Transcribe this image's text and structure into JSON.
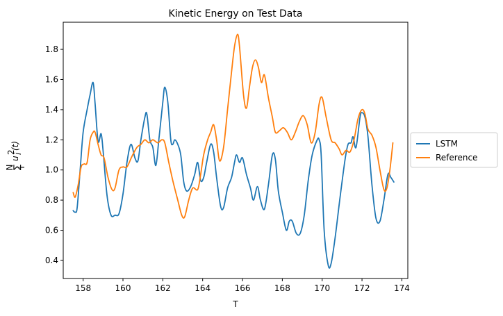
{
  "chart_data": {
    "type": "line",
    "title": "Kinetic Energy on Test Data",
    "xlabel": "T",
    "ylabel": "∑_i^N u_i^2(t)",
    "ylabel_parts": {
      "sigma": "∑",
      "top": "N",
      "bottom": "i",
      "body": "u",
      "sup": "2",
      "sub": "i",
      "arg": "(t)"
    },
    "xlim": [
      157.0,
      174.3
    ],
    "ylim": [
      0.28,
      1.98
    ],
    "xticks": [
      158,
      160,
      162,
      164,
      166,
      168,
      170,
      172,
      174
    ],
    "yticks": [
      0.4,
      0.6,
      0.8,
      1.0,
      1.2,
      1.4,
      1.6,
      1.8
    ],
    "legend_position": "right",
    "grid": false,
    "series": [
      {
        "name": "LSTM",
        "color": "#1f77b4",
        "points": [
          [
            157.5,
            0.73
          ],
          [
            157.6,
            0.72
          ],
          [
            157.7,
            0.75
          ],
          [
            157.85,
            1.0
          ],
          [
            158.0,
            1.25
          ],
          [
            158.2,
            1.4
          ],
          [
            158.35,
            1.5
          ],
          [
            158.5,
            1.58
          ],
          [
            158.6,
            1.44
          ],
          [
            158.75,
            1.19
          ],
          [
            158.9,
            1.24
          ],
          [
            159.0,
            1.13
          ],
          [
            159.2,
            0.83
          ],
          [
            159.4,
            0.7
          ],
          [
            159.6,
            0.7
          ],
          [
            159.8,
            0.71
          ],
          [
            160.0,
            0.84
          ],
          [
            160.2,
            1.05
          ],
          [
            160.4,
            1.17
          ],
          [
            160.6,
            1.08
          ],
          [
            160.75,
            1.06
          ],
          [
            160.9,
            1.2
          ],
          [
            161.1,
            1.35
          ],
          [
            161.2,
            1.37
          ],
          [
            161.35,
            1.2
          ],
          [
            161.5,
            1.15
          ],
          [
            161.65,
            1.03
          ],
          [
            161.8,
            1.2
          ],
          [
            162.0,
            1.45
          ],
          [
            162.1,
            1.55
          ],
          [
            162.25,
            1.45
          ],
          [
            162.4,
            1.2
          ],
          [
            162.5,
            1.17
          ],
          [
            162.6,
            1.2
          ],
          [
            162.75,
            1.17
          ],
          [
            162.9,
            1.1
          ],
          [
            163.05,
            0.92
          ],
          [
            163.2,
            0.86
          ],
          [
            163.4,
            0.89
          ],
          [
            163.6,
            0.97
          ],
          [
            163.75,
            1.05
          ],
          [
            163.9,
            0.93
          ],
          [
            164.05,
            0.95
          ],
          [
            164.2,
            1.05
          ],
          [
            164.4,
            1.17
          ],
          [
            164.55,
            1.12
          ],
          [
            164.7,
            0.95
          ],
          [
            164.9,
            0.76
          ],
          [
            165.05,
            0.75
          ],
          [
            165.25,
            0.88
          ],
          [
            165.45,
            0.95
          ],
          [
            165.6,
            1.05
          ],
          [
            165.7,
            1.1
          ],
          [
            165.85,
            1.05
          ],
          [
            166.0,
            1.08
          ],
          [
            166.2,
            0.97
          ],
          [
            166.4,
            0.88
          ],
          [
            166.55,
            0.8
          ],
          [
            166.75,
            0.89
          ],
          [
            166.9,
            0.8
          ],
          [
            167.1,
            0.74
          ],
          [
            167.3,
            0.9
          ],
          [
            167.5,
            1.1
          ],
          [
            167.65,
            1.07
          ],
          [
            167.8,
            0.86
          ],
          [
            168.0,
            0.72
          ],
          [
            168.2,
            0.6
          ],
          [
            168.35,
            0.66
          ],
          [
            168.5,
            0.66
          ],
          [
            168.7,
            0.58
          ],
          [
            168.9,
            0.58
          ],
          [
            169.1,
            0.7
          ],
          [
            169.3,
            0.93
          ],
          [
            169.5,
            1.1
          ],
          [
            169.75,
            1.2
          ],
          [
            169.85,
            1.2
          ],
          [
            169.95,
            1.1
          ],
          [
            170.1,
            0.6
          ],
          [
            170.3,
            0.37
          ],
          [
            170.45,
            0.38
          ],
          [
            170.65,
            0.55
          ],
          [
            170.9,
            0.82
          ],
          [
            171.15,
            1.07
          ],
          [
            171.3,
            1.17
          ],
          [
            171.45,
            1.18
          ],
          [
            171.55,
            1.22
          ],
          [
            171.7,
            1.15
          ],
          [
            171.9,
            1.35
          ],
          [
            172.0,
            1.38
          ],
          [
            172.15,
            1.35
          ],
          [
            172.3,
            1.22
          ],
          [
            172.5,
            0.9
          ],
          [
            172.7,
            0.68
          ],
          [
            172.9,
            0.66
          ],
          [
            173.1,
            0.8
          ],
          [
            173.3,
            0.97
          ],
          [
            173.45,
            0.95
          ],
          [
            173.6,
            0.92
          ]
        ]
      },
      {
        "name": "Reference",
        "color": "#ff7f0e",
        "points": [
          [
            157.5,
            0.85
          ],
          [
            157.6,
            0.82
          ],
          [
            157.75,
            0.9
          ],
          [
            157.9,
            1.02
          ],
          [
            158.05,
            1.04
          ],
          [
            158.2,
            1.05
          ],
          [
            158.35,
            1.2
          ],
          [
            158.5,
            1.25
          ],
          [
            158.6,
            1.25
          ],
          [
            158.75,
            1.17
          ],
          [
            158.9,
            1.1
          ],
          [
            159.05,
            1.08
          ],
          [
            159.25,
            0.95
          ],
          [
            159.45,
            0.87
          ],
          [
            159.6,
            0.88
          ],
          [
            159.8,
            1.0
          ],
          [
            160.0,
            1.02
          ],
          [
            160.2,
            1.02
          ],
          [
            160.45,
            1.09
          ],
          [
            160.7,
            1.15
          ],
          [
            160.9,
            1.17
          ],
          [
            161.1,
            1.2
          ],
          [
            161.3,
            1.18
          ],
          [
            161.5,
            1.2
          ],
          [
            161.75,
            1.18
          ],
          [
            161.95,
            1.2
          ],
          [
            162.1,
            1.18
          ],
          [
            162.3,
            1.05
          ],
          [
            162.5,
            0.93
          ],
          [
            162.75,
            0.8
          ],
          [
            162.95,
            0.7
          ],
          [
            163.1,
            0.69
          ],
          [
            163.3,
            0.8
          ],
          [
            163.5,
            0.88
          ],
          [
            163.75,
            0.87
          ],
          [
            163.9,
            0.97
          ],
          [
            164.05,
            1.1
          ],
          [
            164.25,
            1.2
          ],
          [
            164.4,
            1.25
          ],
          [
            164.55,
            1.3
          ],
          [
            164.7,
            1.2
          ],
          [
            164.85,
            1.06
          ],
          [
            165.05,
            1.15
          ],
          [
            165.25,
            1.4
          ],
          [
            165.45,
            1.65
          ],
          [
            165.6,
            1.82
          ],
          [
            165.75,
            1.9
          ],
          [
            165.85,
            1.82
          ],
          [
            166.05,
            1.5
          ],
          [
            166.2,
            1.41
          ],
          [
            166.35,
            1.55
          ],
          [
            166.5,
            1.68
          ],
          [
            166.65,
            1.73
          ],
          [
            166.8,
            1.68
          ],
          [
            166.95,
            1.58
          ],
          [
            167.1,
            1.63
          ],
          [
            167.3,
            1.48
          ],
          [
            167.5,
            1.35
          ],
          [
            167.65,
            1.25
          ],
          [
            167.85,
            1.26
          ],
          [
            168.05,
            1.28
          ],
          [
            168.25,
            1.25
          ],
          [
            168.45,
            1.2
          ],
          [
            168.65,
            1.25
          ],
          [
            168.85,
            1.32
          ],
          [
            169.05,
            1.36
          ],
          [
            169.25,
            1.3
          ],
          [
            169.45,
            1.18
          ],
          [
            169.65,
            1.25
          ],
          [
            169.85,
            1.44
          ],
          [
            170.0,
            1.48
          ],
          [
            170.2,
            1.35
          ],
          [
            170.45,
            1.2
          ],
          [
            170.65,
            1.18
          ],
          [
            170.85,
            1.14
          ],
          [
            171.0,
            1.1
          ],
          [
            171.2,
            1.13
          ],
          [
            171.4,
            1.12
          ],
          [
            171.6,
            1.2
          ],
          [
            171.8,
            1.34
          ],
          [
            172.0,
            1.4
          ],
          [
            172.15,
            1.37
          ],
          [
            172.3,
            1.27
          ],
          [
            172.5,
            1.23
          ],
          [
            172.7,
            1.15
          ],
          [
            172.9,
            1.0
          ],
          [
            173.1,
            0.87
          ],
          [
            173.25,
            0.88
          ],
          [
            173.4,
            1.0
          ],
          [
            173.55,
            1.18
          ]
        ]
      }
    ]
  }
}
